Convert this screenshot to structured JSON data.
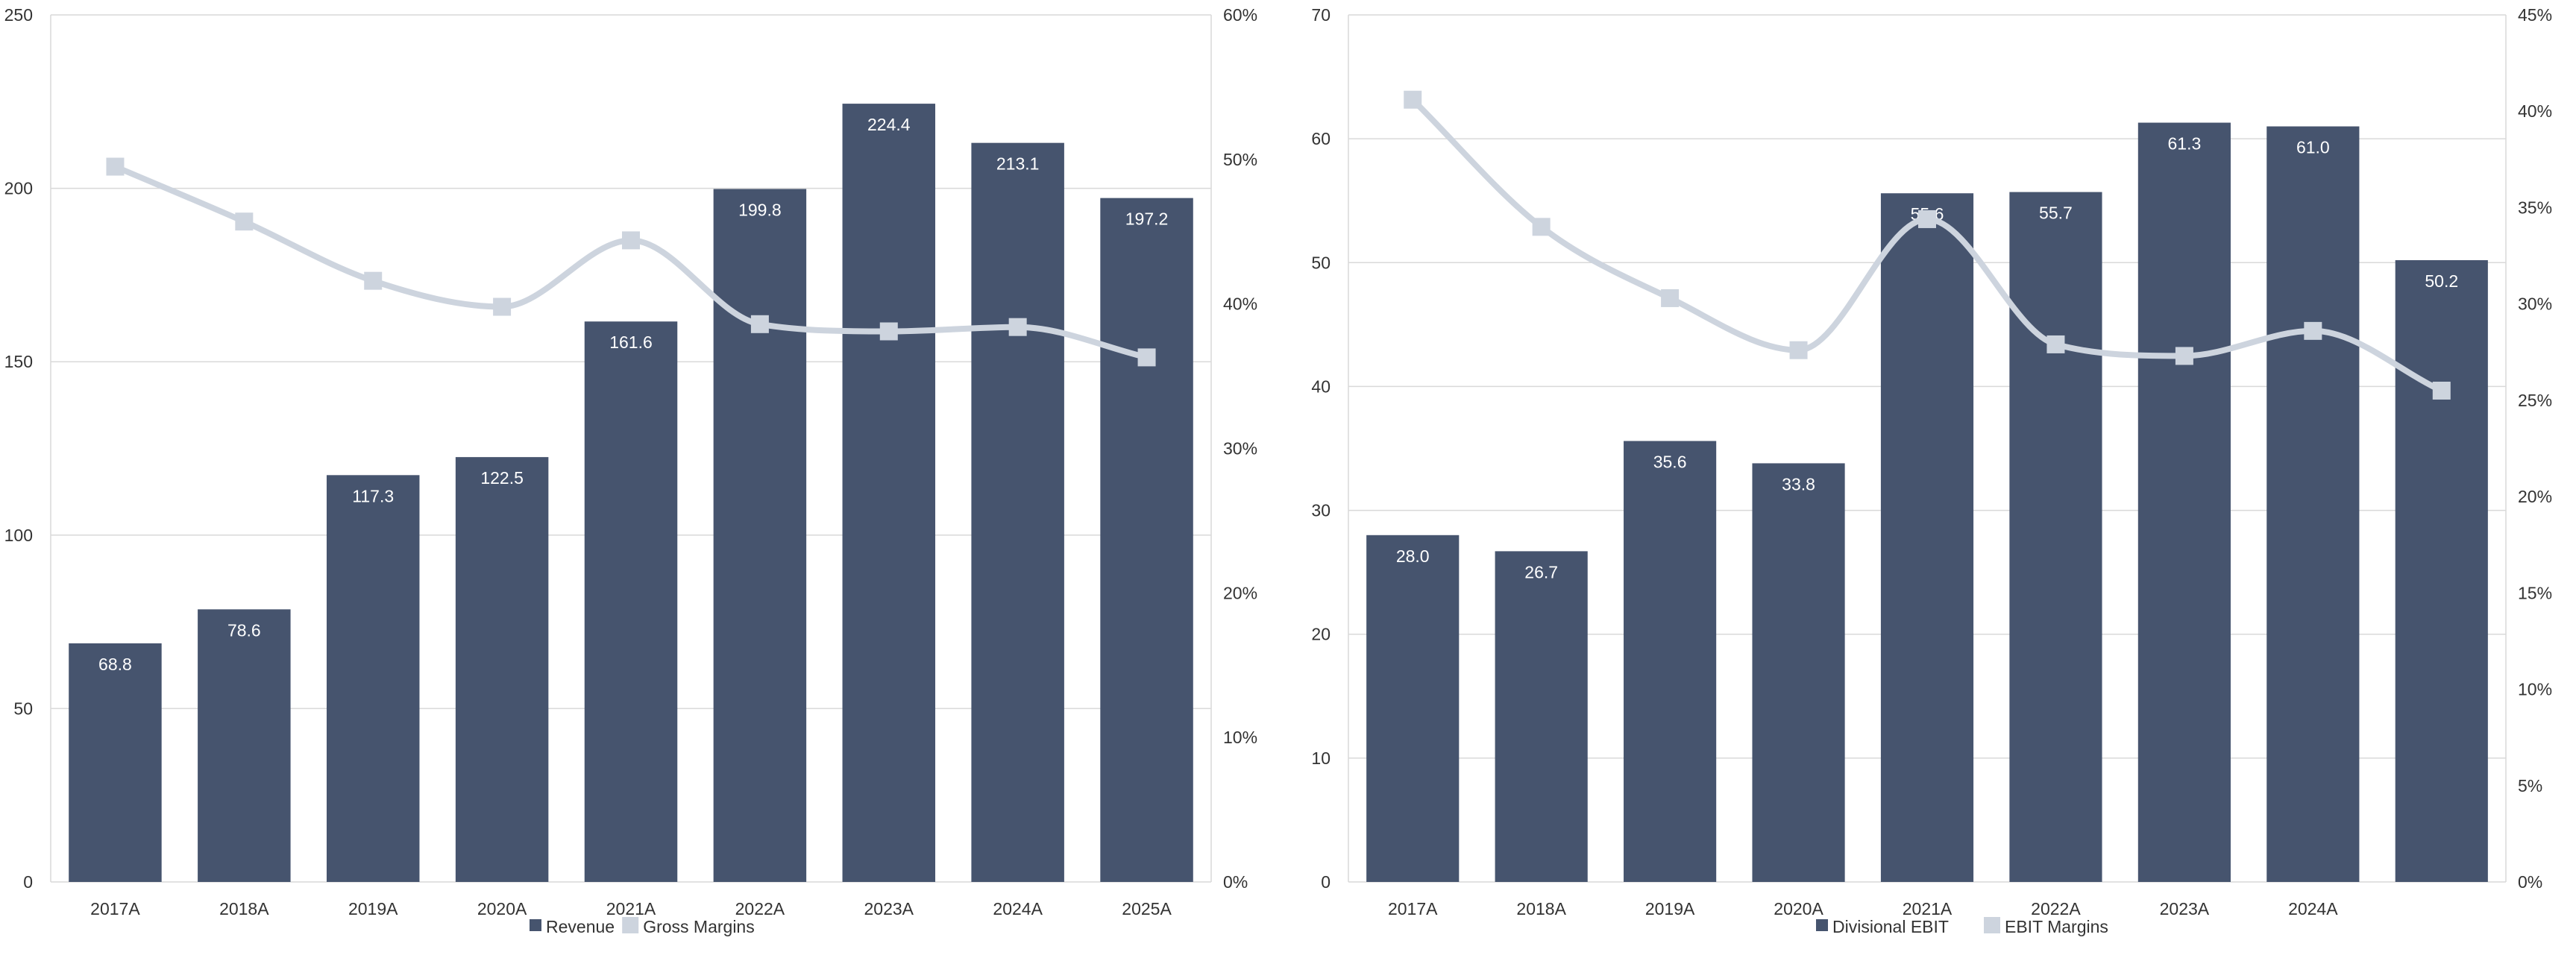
{
  "colors": {
    "bar": "#46546e",
    "line": "#cdd4de",
    "marker": "#cdd4de",
    "grid": "#d9d9d9",
    "label": "#ffffff"
  },
  "chart_data": [
    {
      "type": "bar",
      "categories": [
        "2017A",
        "2018A",
        "2019A",
        "2020A",
        "2021A",
        "2022A",
        "2023A",
        "2024A",
        "2025A"
      ],
      "series": [
        {
          "name": "Revenue",
          "type": "bar",
          "axis": "left",
          "values": [
            68.8,
            78.6,
            117.3,
            122.5,
            161.6,
            199.8,
            224.4,
            213.1,
            197.2
          ],
          "data_labels": [
            "68.8",
            "78.6",
            "117.3",
            "122.5",
            "161.6",
            "199.8",
            "224.4",
            "213.1",
            "197.2"
          ]
        },
        {
          "name": "Gross Margins",
          "type": "line",
          "axis": "right",
          "smooth": true,
          "values": [
            0.495,
            0.457,
            0.416,
            0.398,
            0.444,
            0.386,
            0.381,
            0.384,
            0.363
          ]
        }
      ],
      "y_left": {
        "ylim": [
          0,
          250
        ],
        "ticks": [
          "0",
          "50",
          "100",
          "150",
          "200",
          "250"
        ]
      },
      "y_right": {
        "ylim": [
          0,
          0.6
        ],
        "ticks": [
          "0%",
          "10%",
          "20%",
          "30%",
          "40%",
          "50%",
          "60%"
        ]
      },
      "grid": true,
      "legend": "bottom"
    },
    {
      "type": "bar",
      "categories": [
        "2017A",
        "2018A",
        "2019A",
        "2020A",
        "2021A",
        "2022A",
        "2023A",
        "2024A",
        ""
      ],
      "series": [
        {
          "name": "Divisional EBIT",
          "type": "bar",
          "axis": "left",
          "values": [
            28.0,
            26.7,
            35.6,
            33.8,
            55.6,
            55.7,
            61.3,
            61.0,
            50.2
          ],
          "data_labels": [
            "28.0",
            "26.7",
            "35.6",
            "33.8",
            "55.6",
            "55.7",
            "61.3",
            "61.0",
            "50.2"
          ]
        },
        {
          "name": "EBIT Margins",
          "type": "line",
          "axis": "right",
          "smooth": true,
          "values": [
            0.406,
            0.34,
            0.303,
            0.276,
            0.344,
            0.279,
            0.273,
            0.286,
            0.255
          ]
        }
      ],
      "y_left": {
        "ylim": [
          0,
          70
        ],
        "ticks": [
          "0",
          "10",
          "20",
          "30",
          "40",
          "50",
          "60",
          "70"
        ]
      },
      "y_right": {
        "ylim": [
          0,
          0.45
        ],
        "ticks": [
          "0%",
          "5%",
          "10%",
          "15%",
          "20%",
          "25%",
          "30%",
          "35%",
          "40%",
          "45%"
        ]
      },
      "grid": true,
      "legend": "bottom"
    }
  ]
}
